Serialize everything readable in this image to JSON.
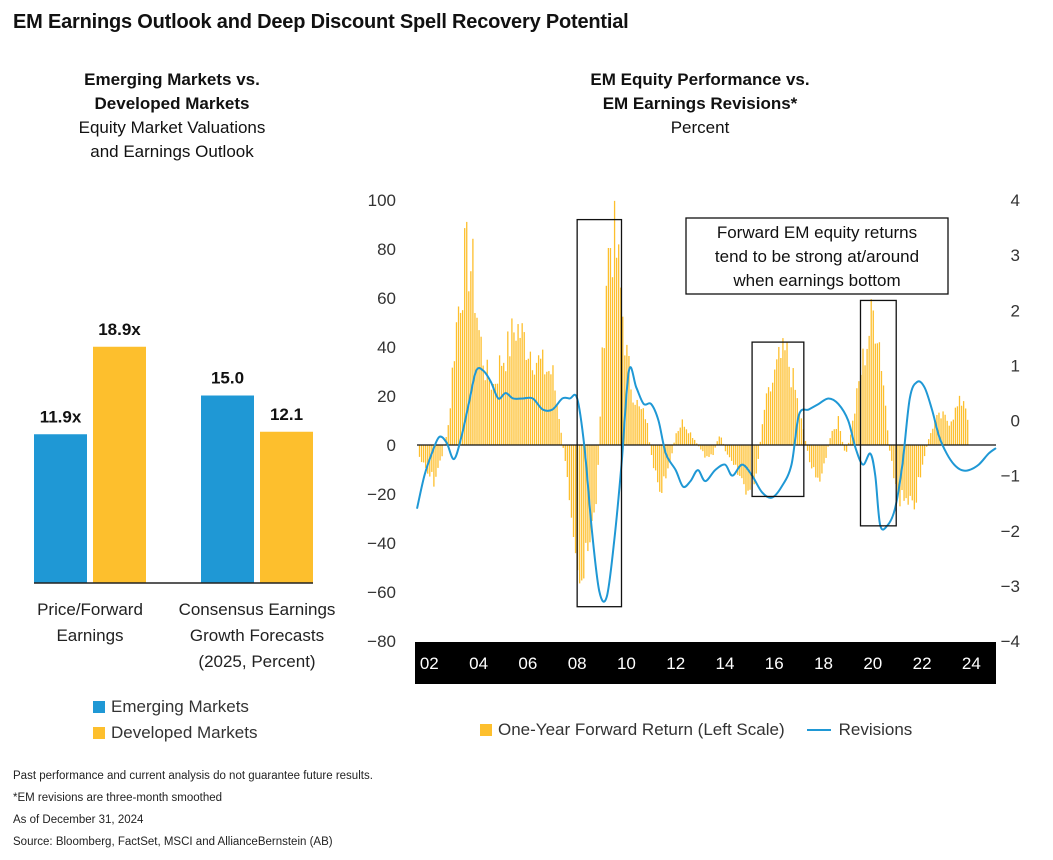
{
  "title": "EM Earnings Outlook and Deep Discount Spell Recovery Potential",
  "colors": {
    "em": "#1f98d5",
    "dm": "#fdbf2d",
    "axis_band": "#000000",
    "revisions_line": "#1f98d5"
  },
  "left_chart": {
    "title_bold": "Emerging Markets vs.\nDeveloped Markets",
    "subtitle": "Equity Market Valuations\nand Earnings Outlook",
    "legend": [
      "Emerging Markets",
      "Developed Markets"
    ]
  },
  "right_chart": {
    "title_bold": "EM Equity Performance vs.\nEM Earnings Revisions*",
    "subtitle": "Percent",
    "annotation": "Forward EM equity returns\ntend to be strong at/around\nwhen earnings bottom",
    "legend": {
      "bars": "One-Year Forward Return (Left Scale)",
      "line": "Revisions"
    }
  },
  "chart_data": [
    {
      "type": "bar",
      "title": "Emerging Markets vs. Developed Markets",
      "subtitle": "Equity Market Valuations and Earnings Outlook",
      "categories": [
        "Price/Forward\nEarnings",
        "Consensus Earnings\nGrowth Forecasts\n(2025, Percent)"
      ],
      "series": [
        {
          "name": "Emerging Markets",
          "values": [
            11.9,
            15.0
          ],
          "labels": [
            "11.9x",
            "15.0"
          ]
        },
        {
          "name": "Developed Markets",
          "values": [
            18.9,
            12.1
          ],
          "labels": [
            "18.9x",
            "12.1"
          ]
        }
      ],
      "ylim": [
        0,
        20
      ]
    },
    {
      "type": "bar+line",
      "title": "EM Equity Performance vs. EM Earnings Revisions*",
      "subtitle": "Percent",
      "x_range": [
        2001.5,
        2025
      ],
      "x_ticks": [
        "02",
        "04",
        "06",
        "08",
        "10",
        "12",
        "14",
        "16",
        "18",
        "20",
        "22",
        "24"
      ],
      "left_axis": {
        "ylim": [
          -80,
          100
        ],
        "ticks": [
          100,
          80,
          60,
          40,
          20,
          0,
          -20,
          -40,
          -60,
          -80
        ]
      },
      "right_axis": {
        "ylim": [
          -4,
          4
        ],
        "ticks": [
          4,
          3,
          2,
          1,
          0,
          -1,
          -2,
          -3,
          -4
        ]
      },
      "series": [
        {
          "name": "One-Year Forward Return (Left Scale)",
          "kind": "bars",
          "axis": "left",
          "points": [
            [
              2001.6,
              -5
            ],
            [
              2001.9,
              -12
            ],
            [
              2002.2,
              -15
            ],
            [
              2002.5,
              -5
            ],
            [
              2002.8,
              10
            ],
            [
              2003.0,
              40
            ],
            [
              2003.2,
              60
            ],
            [
              2003.4,
              75
            ],
            [
              2003.6,
              78
            ],
            [
              2003.8,
              70
            ],
            [
              2004.0,
              48
            ],
            [
              2004.3,
              30
            ],
            [
              2004.6,
              25
            ],
            [
              2004.9,
              35
            ],
            [
              2005.2,
              40
            ],
            [
              2005.5,
              50
            ],
            [
              2005.8,
              45
            ],
            [
              2006.1,
              40
            ],
            [
              2006.4,
              35
            ],
            [
              2006.7,
              32
            ],
            [
              2007.0,
              30
            ],
            [
              2007.3,
              10
            ],
            [
              2007.6,
              -15
            ],
            [
              2007.9,
              -35
            ],
            [
              2008.1,
              -52
            ],
            [
              2008.3,
              -55
            ],
            [
              2008.5,
              -45
            ],
            [
              2008.8,
              -20
            ],
            [
              2009.0,
              30
            ],
            [
              2009.2,
              75
            ],
            [
              2009.4,
              88
            ],
            [
              2009.6,
              80
            ],
            [
              2009.8,
              60
            ],
            [
              2010.0,
              38
            ],
            [
              2010.2,
              25
            ],
            [
              2010.5,
              15
            ],
            [
              2010.8,
              12
            ],
            [
              2011.1,
              -12
            ],
            [
              2011.4,
              -18
            ],
            [
              2011.7,
              -12
            ],
            [
              2012.0,
              5
            ],
            [
              2012.3,
              10
            ],
            [
              2012.6,
              5
            ],
            [
              2012.9,
              0
            ],
            [
              2013.2,
              -5
            ],
            [
              2013.5,
              -4
            ],
            [
              2013.8,
              5
            ],
            [
              2014.1,
              -5
            ],
            [
              2014.4,
              -10
            ],
            [
              2014.7,
              -15
            ],
            [
              2015.0,
              -20
            ],
            [
              2015.3,
              -10
            ],
            [
              2015.6,
              15
            ],
            [
              2015.9,
              25
            ],
            [
              2016.2,
              35
            ],
            [
              2016.5,
              38
            ],
            [
              2016.8,
              25
            ],
            [
              2017.1,
              10
            ],
            [
              2017.4,
              -5
            ],
            [
              2017.7,
              -15
            ],
            [
              2018.0,
              -10
            ],
            [
              2018.3,
              5
            ],
            [
              2018.6,
              10
            ],
            [
              2018.9,
              -5
            ],
            [
              2019.2,
              10
            ],
            [
              2019.5,
              30
            ],
            [
              2019.8,
              45
            ],
            [
              2020.0,
              55
            ],
            [
              2020.2,
              50
            ],
            [
              2020.4,
              30
            ],
            [
              2020.7,
              -5
            ],
            [
              2021.0,
              -20
            ],
            [
              2021.3,
              -25
            ],
            [
              2021.6,
              -28
            ],
            [
              2021.9,
              -15
            ],
            [
              2022.2,
              0
            ],
            [
              2022.5,
              10
            ],
            [
              2022.8,
              12
            ],
            [
              2023.1,
              10
            ],
            [
              2023.4,
              15
            ],
            [
              2023.7,
              20
            ],
            [
              2023.9,
              10
            ]
          ]
        },
        {
          "name": "Revisions",
          "kind": "line",
          "axis": "right",
          "points": [
            [
              2001.5,
              -1.6
            ],
            [
              2001.8,
              -1.0
            ],
            [
              2002.1,
              -0.6
            ],
            [
              2002.4,
              -0.3
            ],
            [
              2002.7,
              -0.4
            ],
            [
              2003.0,
              -0.7
            ],
            [
              2003.3,
              -0.3
            ],
            [
              2003.6,
              0.3
            ],
            [
              2003.9,
              0.9
            ],
            [
              2004.2,
              0.9
            ],
            [
              2004.5,
              0.7
            ],
            [
              2004.8,
              0.4
            ],
            [
              2005.1,
              0.5
            ],
            [
              2005.4,
              0.4
            ],
            [
              2005.8,
              0.4
            ],
            [
              2006.2,
              0.4
            ],
            [
              2006.6,
              0.2
            ],
            [
              2007.0,
              0.2
            ],
            [
              2007.4,
              0.4
            ],
            [
              2007.7,
              0.4
            ],
            [
              2008.0,
              0.4
            ],
            [
              2008.3,
              -0.5
            ],
            [
              2008.6,
              -2.0
            ],
            [
              2008.9,
              -3.1
            ],
            [
              2009.2,
              -3.2
            ],
            [
              2009.5,
              -2.2
            ],
            [
              2009.8,
              -0.8
            ],
            [
              2010.1,
              0.9
            ],
            [
              2010.4,
              0.6
            ],
            [
              2010.7,
              0.3
            ],
            [
              2011.0,
              0.3
            ],
            [
              2011.3,
              0.0
            ],
            [
              2011.6,
              -0.6
            ],
            [
              2012.0,
              -0.9
            ],
            [
              2012.3,
              -1.2
            ],
            [
              2012.6,
              -1.1
            ],
            [
              2012.9,
              -0.9
            ],
            [
              2013.2,
              -1.1
            ],
            [
              2013.6,
              -0.9
            ],
            [
              2014.0,
              -0.8
            ],
            [
              2014.3,
              -1.0
            ],
            [
              2014.7,
              -0.8
            ],
            [
              2015.1,
              -1.0
            ],
            [
              2015.5,
              -1.3
            ],
            [
              2015.9,
              -1.4
            ],
            [
              2016.3,
              -1.2
            ],
            [
              2016.7,
              -0.8
            ],
            [
              2017.0,
              0.1
            ],
            [
              2017.4,
              0.2
            ],
            [
              2017.8,
              0.3
            ],
            [
              2018.2,
              0.4
            ],
            [
              2018.6,
              0.3
            ],
            [
              2019.0,
              0.0
            ],
            [
              2019.3,
              -0.5
            ],
            [
              2019.6,
              -0.8
            ],
            [
              2019.9,
              -0.6
            ],
            [
              2020.1,
              -1.0
            ],
            [
              2020.3,
              -1.9
            ],
            [
              2020.6,
              -1.9
            ],
            [
              2020.9,
              -1.6
            ],
            [
              2021.2,
              -0.8
            ],
            [
              2021.5,
              0.4
            ],
            [
              2021.8,
              0.7
            ],
            [
              2022.1,
              0.6
            ],
            [
              2022.4,
              0.2
            ],
            [
              2022.7,
              -0.3
            ],
            [
              2023.0,
              -0.6
            ],
            [
              2023.3,
              -0.8
            ],
            [
              2023.6,
              -0.9
            ],
            [
              2023.9,
              -0.9
            ],
            [
              2024.3,
              -0.8
            ],
            [
              2024.7,
              -0.6
            ],
            [
              2025.0,
              -0.5
            ]
          ]
        }
      ],
      "highlights": [
        [
          2008.0,
          2009.8
        ],
        [
          2015.1,
          2017.2
        ],
        [
          2019.5,
          2020.95
        ]
      ]
    }
  ],
  "footnotes": [
    "Past performance and current analysis do not guarantee future results.",
    "*EM revisions are three-month smoothed",
    "As of December 31, 2024",
    "Source: Bloomberg, FactSet, MSCI and AllianceBernstein (AB)"
  ]
}
